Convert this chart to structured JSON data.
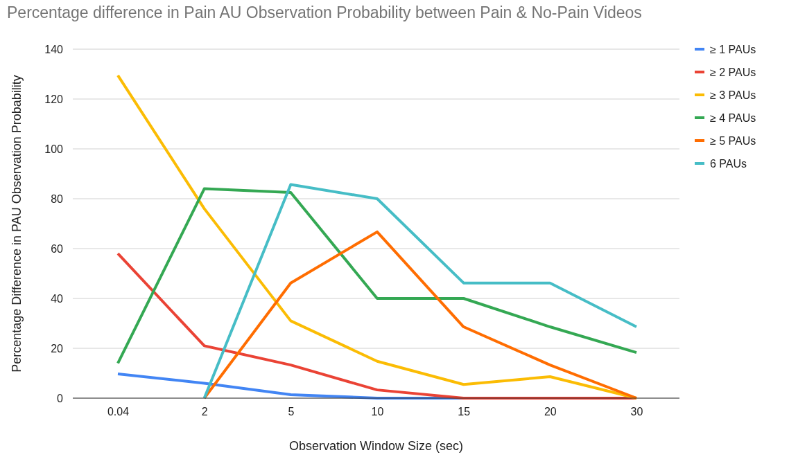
{
  "chart_data": {
    "type": "line",
    "title": "Percentage difference in Pain AU Observation Probability between Pain & No-Pain Videos",
    "xlabel": "Observation Window Size (sec)",
    "ylabel": "Percentage Difference in PAU Observation Probability",
    "categories": [
      "0.04",
      "2",
      "5",
      "10",
      "15",
      "20",
      "30"
    ],
    "series": [
      {
        "name": "≥ 1 PAUs",
        "color": "#4285f4",
        "values": [
          9.7,
          6,
          1.4,
          0,
          0,
          0,
          0
        ]
      },
      {
        "name": "≥ 2 PAUs",
        "color": "#ea4335",
        "values": [
          58,
          21,
          13.3,
          3.3,
          0,
          0,
          0
        ]
      },
      {
        "name": "≥ 3 PAUs",
        "color": "#fbbc04",
        "values": [
          129.5,
          76,
          31,
          14.8,
          5.5,
          8.6,
          0
        ]
      },
      {
        "name": "≥ 4 PAUs",
        "color": "#34a853",
        "values": [
          14,
          84,
          82.5,
          40,
          40,
          28.6,
          18.3
        ]
      },
      {
        "name": "≥ 5 PAUs",
        "color": "#ff6d01",
        "values": [
          null,
          0,
          46.2,
          66.7,
          28.6,
          13.3,
          0
        ]
      },
      {
        "name": "6 PAUs",
        "color": "#46bdc6",
        "values": [
          null,
          0,
          85.7,
          80,
          46.2,
          46.2,
          28.6
        ]
      }
    ],
    "ylim": [
      0,
      140
    ],
    "yticks": [
      0,
      20,
      40,
      60,
      80,
      100,
      120,
      140
    ],
    "grid": "y",
    "legend": "right",
    "marker": "none",
    "line_style": "solid"
  }
}
